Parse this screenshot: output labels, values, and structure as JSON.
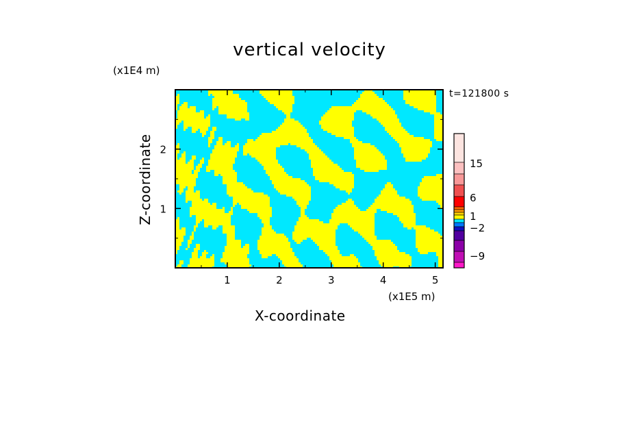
{
  "chart_data": {
    "type": "heatmap",
    "title": "vertical velocity",
    "xlabel": "X-coordinate",
    "ylabel": "Z-coordinate",
    "x_unit": "(x1E5 m)",
    "y_unit": "(x1E4 m)",
    "time_label": "t=121800 s",
    "xlim": [
      0,
      5.15
    ],
    "ylim": [
      0,
      3.0
    ],
    "x_ticks": [
      "1",
      "2",
      "3",
      "4",
      "5"
    ],
    "y_ticks": [
      "1",
      "2"
    ],
    "colorbar": {
      "tick_labels": [
        "15",
        "6",
        "1",
        "−2",
        "−9"
      ],
      "colors": [
        "#ff18c8",
        "#c00fb4",
        "#8c00a8",
        "#5200a0",
        "#1010c0",
        "#0078ff",
        "#00e8ff",
        "#ffff00",
        "#ffd000",
        "#ff9800",
        "#ff6400",
        "#ff0000",
        "#f05050",
        "#f89898",
        "#fcc0c0",
        "#fce4e0"
      ]
    },
    "field_colors": {
      "positive": "#ffff00",
      "negative": "#00e8ff"
    }
  }
}
